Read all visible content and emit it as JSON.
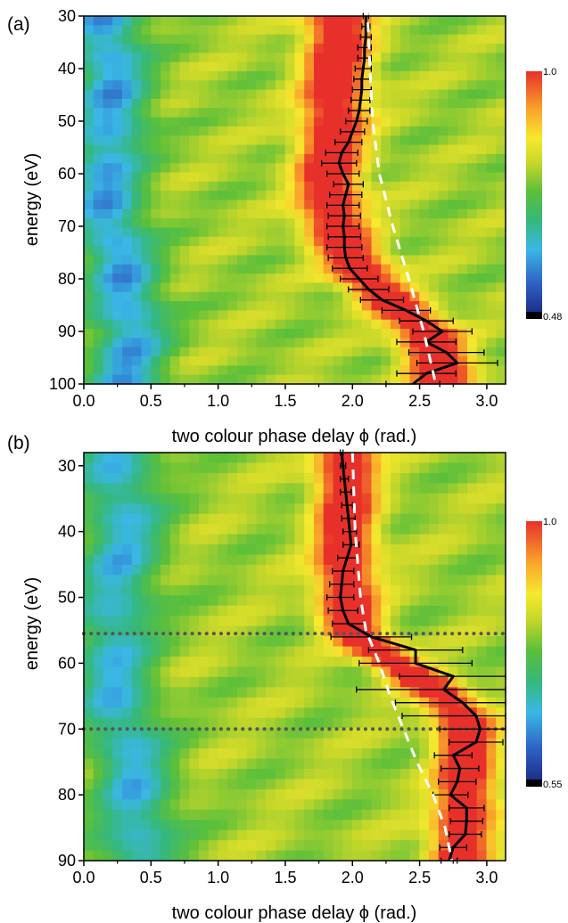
{
  "chart_data": [
    {
      "panel_label": "(a)",
      "type": "heatmap",
      "xlabel": "two colour phase delay ϕ (rad.)",
      "ylabel": "energy (eV)",
      "xlim": [
        0.0,
        3.14
      ],
      "ylim": [
        30,
        100
      ],
      "y_inverted": true,
      "x_ticks": [
        "0.0",
        "0.5",
        "1.0",
        "1.5",
        "2.0",
        "2.5",
        "3.0"
      ],
      "y_ticks": [
        "30",
        "40",
        "50",
        "60",
        "70",
        "80",
        "90",
        "100"
      ],
      "colorbar": {
        "max_label": "1.0",
        "min_label": "0.48",
        "max": 1.0,
        "min": 0.48,
        "placement": "right"
      },
      "ridges": [
        {
          "center": [
            [
              28,
              1.9
            ],
            [
              40,
              1.88
            ],
            [
              50,
              1.86
            ],
            [
              60,
              1.82
            ],
            [
              70,
              1.86
            ],
            [
              80,
              2.1
            ],
            [
              90,
              2.55
            ],
            [
              100,
              2.7
            ]
          ],
          "width": 0.24,
          "amp": 0.55
        },
        {
          "center": [
            [
              28,
              0.15
            ],
            [
              40,
              0.2
            ],
            [
              50,
              0.22
            ],
            [
              60,
              0.15
            ],
            [
              70,
              0.2
            ],
            [
              80,
              0.3
            ],
            [
              90,
              0.35
            ],
            [
              100,
              0.3
            ]
          ],
          "width": 0.28,
          "amp": -0.35
        }
      ],
      "series": [
        {
          "name": "",
          "style": "black-line-errorbars",
          "points": [
            {
              "y": 30,
              "x": 2.1,
              "err": 0.02
            },
            {
              "y": 32,
              "x": 2.1,
              "err": 0.03
            },
            {
              "y": 34,
              "x": 2.1,
              "err": 0.04
            },
            {
              "y": 36,
              "x": 2.09,
              "err": 0.05
            },
            {
              "y": 38,
              "x": 2.09,
              "err": 0.05
            },
            {
              "y": 40,
              "x": 2.08,
              "err": 0.06
            },
            {
              "y": 42,
              "x": 2.07,
              "err": 0.06
            },
            {
              "y": 44,
              "x": 2.07,
              "err": 0.07
            },
            {
              "y": 46,
              "x": 2.06,
              "err": 0.07
            },
            {
              "y": 48,
              "x": 2.05,
              "err": 0.08
            },
            {
              "y": 50,
              "x": 2.03,
              "err": 0.08
            },
            {
              "y": 52,
              "x": 2.0,
              "err": 0.09
            },
            {
              "y": 54,
              "x": 1.97,
              "err": 0.1
            },
            {
              "y": 56,
              "x": 1.92,
              "err": 0.12
            },
            {
              "y": 58,
              "x": 1.9,
              "err": 0.13
            },
            {
              "y": 60,
              "x": 1.93,
              "err": 0.12
            },
            {
              "y": 62,
              "x": 1.97,
              "err": 0.11
            },
            {
              "y": 64,
              "x": 1.95,
              "err": 0.12
            },
            {
              "y": 66,
              "x": 1.93,
              "err": 0.12
            },
            {
              "y": 68,
              "x": 1.94,
              "err": 0.12
            },
            {
              "y": 70,
              "x": 1.93,
              "err": 0.12
            },
            {
              "y": 72,
              "x": 1.94,
              "err": 0.12
            },
            {
              "y": 74,
              "x": 1.94,
              "err": 0.13
            },
            {
              "y": 76,
              "x": 1.95,
              "err": 0.13
            },
            {
              "y": 78,
              "x": 1.98,
              "err": 0.13
            },
            {
              "y": 80,
              "x": 2.05,
              "err": 0.14
            },
            {
              "y": 82,
              "x": 2.12,
              "err": 0.15
            },
            {
              "y": 84,
              "x": 2.22,
              "err": 0.16
            },
            {
              "y": 86,
              "x": 2.4,
              "err": 0.18
            },
            {
              "y": 88,
              "x": 2.55,
              "err": 0.2
            },
            {
              "y": 90,
              "x": 2.67,
              "err": 0.22
            },
            {
              "y": 92,
              "x": 2.55,
              "err": 0.22
            },
            {
              "y": 94,
              "x": 2.7,
              "err": 0.28
            },
            {
              "y": 96,
              "x": 2.78,
              "err": 0.3
            },
            {
              "y": 98,
              "x": 2.55,
              "err": 0.22
            },
            {
              "y": 100,
              "x": 2.45,
              "err": 0.2
            }
          ]
        },
        {
          "name": "",
          "style": "white-dashed",
          "points": [
            {
              "y": 28,
              "x": 2.11
            },
            {
              "y": 40,
              "x": 2.13
            },
            {
              "y": 50,
              "x": 2.15
            },
            {
              "y": 60,
              "x": 2.2
            },
            {
              "y": 70,
              "x": 2.3
            },
            {
              "y": 80,
              "x": 2.42
            },
            {
              "y": 90,
              "x": 2.53
            },
            {
              "y": 100,
              "x": 2.62
            }
          ]
        }
      ]
    },
    {
      "panel_label": "(b)",
      "type": "heatmap",
      "xlabel": "two colour phase delay ϕ (rad.)",
      "ylabel": "energy (eV)",
      "xlim": [
        0.0,
        3.14
      ],
      "ylim": [
        28,
        90
      ],
      "y_inverted": true,
      "x_ticks": [
        "0.0",
        "0.5",
        "1.0",
        "1.5",
        "2.0",
        "2.5",
        "3.0"
      ],
      "y_ticks": [
        "30",
        "40",
        "50",
        "60",
        "70",
        "80",
        "90"
      ],
      "colorbar": {
        "max_label": "1.0",
        "min_label": "0.55",
        "max": 1.0,
        "min": 0.55,
        "placement": "right"
      },
      "hlines": [
        {
          "y": 55.5,
          "style": "dotted"
        },
        {
          "y": 70,
          "style": "dotted"
        }
      ],
      "ridges": [
        {
          "center": [
            [
              28,
              1.95
            ],
            [
              40,
              1.95
            ],
            [
              50,
              1.95
            ],
            [
              55,
              2.0
            ],
            [
              60,
              2.3
            ],
            [
              65,
              2.7
            ],
            [
              70,
              2.85
            ],
            [
              80,
              2.85
            ],
            [
              90,
              2.78
            ]
          ],
          "width": 0.22,
          "amp": 0.55
        },
        {
          "center": [
            [
              28,
              0.25
            ],
            [
              40,
              0.3
            ],
            [
              50,
              0.25
            ],
            [
              60,
              0.2
            ],
            [
              70,
              0.3
            ],
            [
              80,
              0.4
            ],
            [
              90,
              0.4
            ]
          ],
          "width": 0.3,
          "amp": -0.3
        }
      ],
      "series": [
        {
          "name": "",
          "style": "black-line-errorbars",
          "points": [
            {
              "y": 28,
              "x": 1.92,
              "err": 0.01
            },
            {
              "y": 30,
              "x": 1.93,
              "err": 0.02
            },
            {
              "y": 32,
              "x": 1.94,
              "err": 0.03
            },
            {
              "y": 34,
              "x": 1.95,
              "err": 0.04
            },
            {
              "y": 36,
              "x": 1.96,
              "err": 0.04
            },
            {
              "y": 38,
              "x": 1.97,
              "err": 0.05
            },
            {
              "y": 40,
              "x": 1.98,
              "err": 0.05
            },
            {
              "y": 42,
              "x": 1.99,
              "err": 0.06
            },
            {
              "y": 44,
              "x": 1.96,
              "err": 0.07
            },
            {
              "y": 46,
              "x": 1.93,
              "err": 0.08
            },
            {
              "y": 48,
              "x": 1.92,
              "err": 0.09
            },
            {
              "y": 50,
              "x": 1.91,
              "err": 0.1
            },
            {
              "y": 52,
              "x": 1.93,
              "err": 0.11
            },
            {
              "y": 54,
              "x": 1.97,
              "err": 0.12
            },
            {
              "y": 56,
              "x": 2.14,
              "err": 0.3
            },
            {
              "y": 58,
              "x": 2.47,
              "err": 0.35
            },
            {
              "y": 60,
              "x": 2.47,
              "err": 0.42
            },
            {
              "y": 62,
              "x": 2.75,
              "err": 0.4
            },
            {
              "y": 64,
              "x": 2.68,
              "err": 0.65
            },
            {
              "y": 66,
              "x": 2.82,
              "err": 0.5
            },
            {
              "y": 68,
              "x": 2.92,
              "err": 0.55
            },
            {
              "y": 70,
              "x": 2.95,
              "err": 0.3
            },
            {
              "y": 72,
              "x": 2.92,
              "err": 0.2
            },
            {
              "y": 74,
              "x": 2.75,
              "err": 0.14
            },
            {
              "y": 76,
              "x": 2.8,
              "err": 0.14
            },
            {
              "y": 78,
              "x": 2.78,
              "err": 0.14
            },
            {
              "y": 80,
              "x": 2.73,
              "err": 0.13
            },
            {
              "y": 82,
              "x": 2.85,
              "err": 0.13
            },
            {
              "y": 84,
              "x": 2.85,
              "err": 0.12
            },
            {
              "y": 86,
              "x": 2.84,
              "err": 0.12
            },
            {
              "y": 88,
              "x": 2.75,
              "err": 0.1
            },
            {
              "y": 90,
              "x": 2.72,
              "err": 0.06
            }
          ]
        },
        {
          "name": "",
          "style": "white-dashed",
          "points": [
            {
              "y": 28,
              "x": 2.0
            },
            {
              "y": 40,
              "x": 2.02
            },
            {
              "y": 50,
              "x": 2.06
            },
            {
              "y": 55,
              "x": 2.1
            },
            {
              "y": 60,
              "x": 2.2
            },
            {
              "y": 65,
              "x": 2.28
            },
            {
              "y": 70,
              "x": 2.38
            },
            {
              "y": 75,
              "x": 2.48
            },
            {
              "y": 80,
              "x": 2.6
            },
            {
              "y": 85,
              "x": 2.69
            },
            {
              "y": 90,
              "x": 2.74
            }
          ]
        }
      ]
    }
  ]
}
